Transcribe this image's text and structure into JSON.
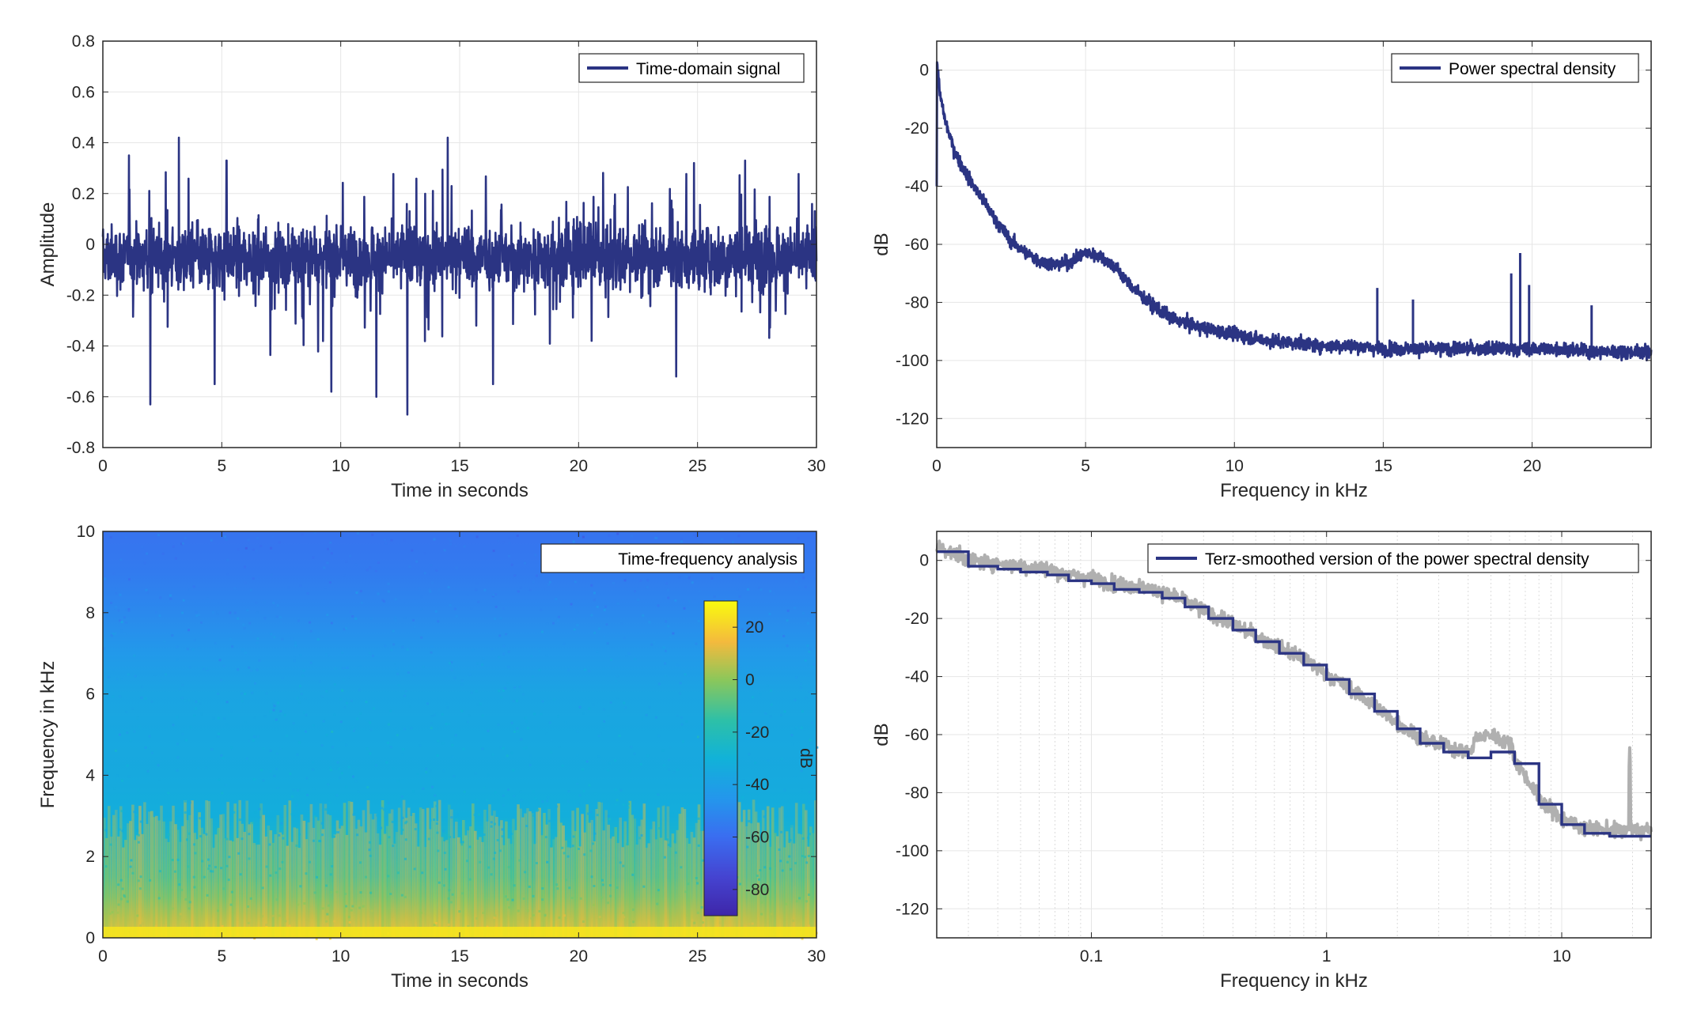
{
  "colors": {
    "signal": "#2b3483",
    "smooth_overlay_gray": "#b0b0b0",
    "grid": "#e6e6e6",
    "axes": "#262626"
  },
  "chart_data": [
    {
      "type": "line",
      "id": "time-domain",
      "xlabel": "Time in seconds",
      "ylabel": "Amplitude",
      "xlim": [
        0,
        30
      ],
      "ylim": [
        -0.8,
        0.8
      ],
      "xticks": [
        "0",
        "5",
        "10",
        "15",
        "20",
        "25",
        "30"
      ],
      "yticks": [
        "-0.8",
        "-0.6",
        "-0.4",
        "-0.2",
        "0",
        "0.2",
        "0.4",
        "0.6",
        "0.8"
      ],
      "grid": true,
      "legend": {
        "position": "top-right",
        "entries": [
          "Time-domain signal"
        ]
      },
      "series": [
        {
          "name": "Time-domain signal",
          "description_stats": {
            "mean": 0,
            "typical_envelope": [
              -0.3,
              0.2
            ]
          },
          "peaks": [
            {
              "x": 1.1,
              "y": 0.35
            },
            {
              "x": 2.0,
              "y": -0.63
            },
            {
              "x": 3.2,
              "y": 0.42
            },
            {
              "x": 4.7,
              "y": -0.55
            },
            {
              "x": 5.2,
              "y": 0.33
            },
            {
              "x": 9.6,
              "y": -0.58
            },
            {
              "x": 11.5,
              "y": -0.6
            },
            {
              "x": 12.8,
              "y": -0.67
            },
            {
              "x": 14.5,
              "y": 0.42
            },
            {
              "x": 16.4,
              "y": -0.55
            },
            {
              "x": 24.1,
              "y": -0.52
            },
            {
              "x": 27.0,
              "y": 0.33
            }
          ]
        }
      ]
    },
    {
      "type": "line",
      "id": "psd",
      "xlabel": "Frequency in kHz",
      "ylabel": "dB",
      "xlim": [
        0,
        24
      ],
      "ylim": [
        -130,
        10
      ],
      "xticks": [
        "0",
        "5",
        "10",
        "15",
        "20"
      ],
      "yticks": [
        "-120",
        "-100",
        "-80",
        "-60",
        "-40",
        "-20",
        "0"
      ],
      "grid": true,
      "legend": {
        "position": "top-right",
        "entries": [
          "Power spectral density"
        ]
      },
      "series": [
        {
          "name": "Power spectral density",
          "x": [
            0,
            0.1,
            0.3,
            0.6,
            1.0,
            1.5,
            2.0,
            2.5,
            3.0,
            3.5,
            4.0,
            4.5,
            5.0,
            5.5,
            6.0,
            6.5,
            7.0,
            7.5,
            8.0,
            9.0,
            10.0,
            11.0,
            12.0,
            13.0,
            14.0,
            15.0,
            16.0,
            17.0,
            18.0,
            19.0,
            20.0,
            21.0,
            22.0,
            23.0,
            24.0
          ],
          "y": [
            5,
            -8,
            -18,
            -28,
            -36,
            -44,
            -52,
            -59,
            -63,
            -66,
            -67,
            -66,
            -63,
            -64,
            -68,
            -74,
            -79,
            -83,
            -86,
            -89,
            -91,
            -93,
            -94,
            -95,
            -95,
            -96,
            -96,
            -96,
            -96,
            -96,
            -96,
            -96,
            -97,
            -97,
            -97
          ],
          "spikes": [
            {
              "x": 14.8,
              "y": -75
            },
            {
              "x": 16.0,
              "y": -79
            },
            {
              "x": 19.3,
              "y": -70
            },
            {
              "x": 19.6,
              "y": -63
            },
            {
              "x": 19.9,
              "y": -74
            },
            {
              "x": 22.0,
              "y": -81
            }
          ]
        }
      ]
    },
    {
      "type": "heatmap",
      "id": "spectrogram",
      "xlabel": "Time in seconds",
      "ylabel": "Frequency in kHz",
      "xlim": [
        0,
        30
      ],
      "ylim": [
        0,
        10
      ],
      "xticks": [
        "0",
        "5",
        "10",
        "15",
        "20",
        "25",
        "30"
      ],
      "yticks": [
        "0",
        "2",
        "4",
        "6",
        "8",
        "10"
      ],
      "legend": {
        "position": "top-right",
        "entries": [
          "Time-frequency analysis"
        ]
      },
      "colorbar": {
        "label": "dB",
        "range": [
          -90,
          30
        ],
        "ticks": [
          "20",
          "0",
          "-20",
          "-40",
          "-60",
          "-80"
        ]
      },
      "level_profile_db": {
        "frequency_khz": [
          0,
          0.5,
          1,
          1.5,
          2,
          3,
          4,
          5,
          6,
          7,
          8,
          9,
          10
        ],
        "db": [
          18,
          5,
          -8,
          -18,
          -24,
          -32,
          -35,
          -36,
          -38,
          -44,
          -50,
          -55,
          -58
        ]
      }
    },
    {
      "type": "line",
      "id": "terz-smoothed",
      "xlabel": "Frequency in kHz",
      "ylabel": "dB",
      "xscale": "log",
      "xlim": [
        0.022,
        24
      ],
      "ylim": [
        -130,
        10
      ],
      "xticks": [
        "0.1",
        "1",
        "10"
      ],
      "yticks": [
        "-120",
        "-100",
        "-80",
        "-60",
        "-40",
        "-20",
        "0"
      ],
      "grid": true,
      "legend": {
        "position": "top-right",
        "entries": [
          "Terz-smoothed version of the power spectral density"
        ]
      },
      "series": [
        {
          "name": "Terz-smoothed version of the power spectral density",
          "x": [
            0.022,
            0.03,
            0.04,
            0.05,
            0.065,
            0.08,
            0.1,
            0.125,
            0.16,
            0.2,
            0.25,
            0.315,
            0.4,
            0.5,
            0.63,
            0.8,
            1.0,
            1.25,
            1.6,
            2.0,
            2.5,
            3.15,
            4.0,
            5.0,
            6.3,
            8.0,
            10.0,
            12.5,
            16.0,
            20.0,
            24.0
          ],
          "y": [
            3,
            -2,
            -3,
            -4,
            -5,
            -7,
            -8,
            -10,
            -11,
            -13,
            -16,
            -20,
            -24,
            -28,
            -32,
            -36,
            -41,
            -46,
            -52,
            -58,
            -63,
            -66,
            -68,
            -66,
            -70,
            -84,
            -91,
            -94,
            -95,
            -95,
            -95
          ]
        }
      ]
    }
  ]
}
